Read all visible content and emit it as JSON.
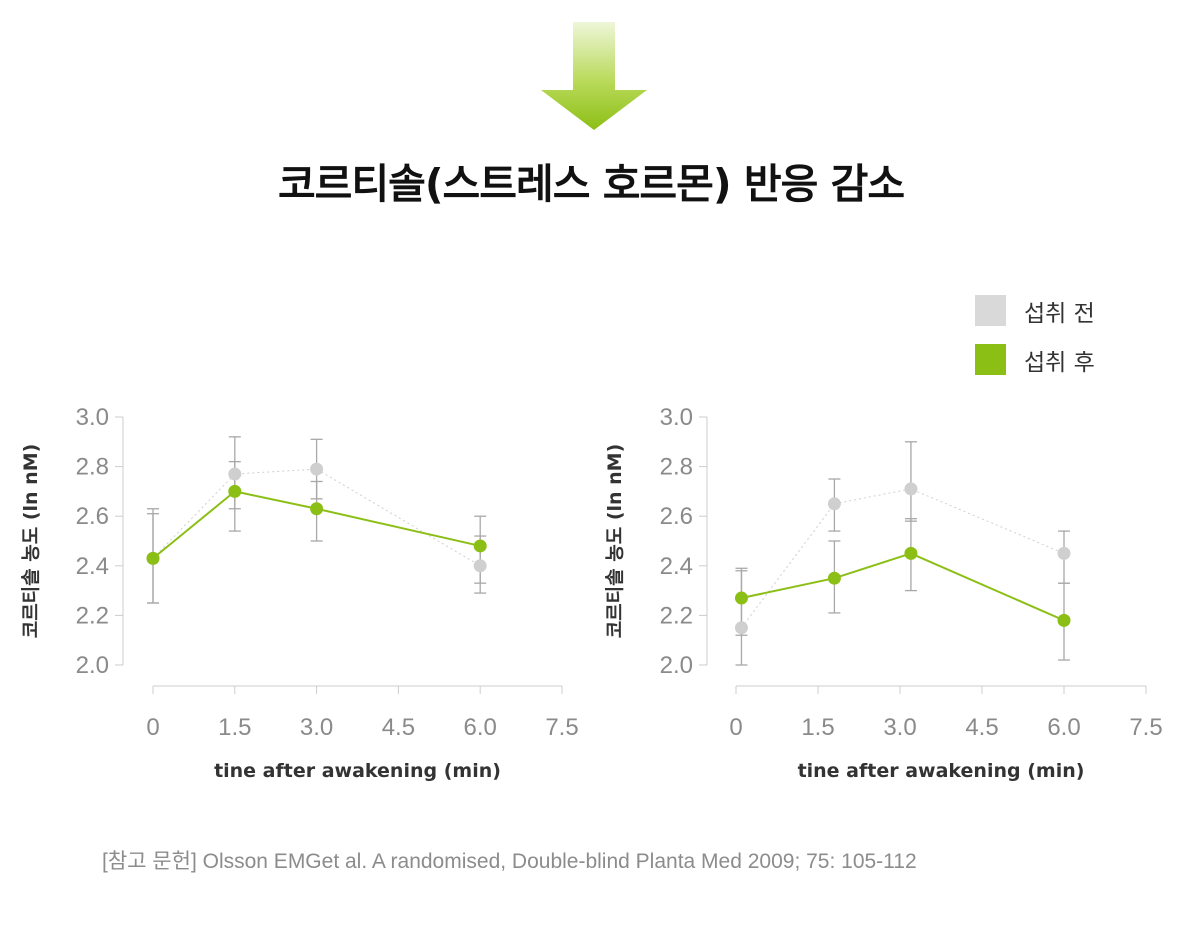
{
  "title": "코르티솔(스트레스 호르몬) 반응 감소",
  "colors": {
    "before": "#cfcfcf",
    "after": "#8cbf15",
    "axis": "#cccccc",
    "error": "#a8a8a8"
  },
  "legend": [
    {
      "label": "섭취 전",
      "color": "#d9d9d9"
    },
    {
      "label": "섭취 후",
      "color": "#8cbf15"
    }
  ],
  "chart_data": [
    {
      "type": "line",
      "xlabel": "tine after awakening (min)",
      "ylabel": "코르티솔 농도 (ln nM)",
      "xlim": [
        0,
        7.5
      ],
      "ylim": [
        2.0,
        3.0
      ],
      "xticks": [
        "0",
        "1.5",
        "3.0",
        "4.5",
        "6.0",
        "7.5"
      ],
      "yticks": [
        "2.0",
        "2.2",
        "2.4",
        "2.6",
        "2.8",
        "3.0"
      ],
      "grid": false,
      "series": [
        {
          "name": "섭취 전",
          "x": [
            0,
            1.5,
            3.0,
            6.0
          ],
          "y": [
            2.43,
            2.77,
            2.79,
            2.4
          ],
          "err_low": [
            2.25,
            2.63,
            2.67,
            2.29
          ],
          "err_high": [
            2.63,
            2.92,
            2.91,
            2.52
          ]
        },
        {
          "name": "섭취 후",
          "x": [
            0,
            1.5,
            3.0,
            6.0
          ],
          "y": [
            2.43,
            2.7,
            2.63,
            2.48
          ],
          "err_low": [
            2.25,
            2.54,
            2.5,
            2.33
          ],
          "err_high": [
            2.61,
            2.82,
            2.74,
            2.6
          ]
        }
      ]
    },
    {
      "type": "line",
      "xlabel": "tine after awakening (min)",
      "ylabel": "코르티솔 농도 (ln nM)",
      "xlim": [
        0,
        7.5
      ],
      "ylim": [
        2.0,
        3.0
      ],
      "xticks": [
        "0",
        "1.5",
        "3.0",
        "4.5",
        "6.0",
        "7.5"
      ],
      "yticks": [
        "2.0",
        "2.2",
        "2.4",
        "2.6",
        "2.8",
        "3.0"
      ],
      "grid": false,
      "series": [
        {
          "name": "섭취 전",
          "x": [
            0.1,
            1.8,
            3.2,
            6.0
          ],
          "y": [
            2.15,
            2.65,
            2.71,
            2.45
          ],
          "err_low": [
            2.0,
            2.54,
            2.58,
            2.33
          ],
          "err_high": [
            2.39,
            2.75,
            2.9,
            2.54
          ]
        },
        {
          "name": "섭취 후",
          "x": [
            0.1,
            1.8,
            3.2,
            6.0
          ],
          "y": [
            2.27,
            2.35,
            2.45,
            2.18
          ],
          "err_low": [
            2.12,
            2.21,
            2.3,
            2.02
          ],
          "err_high": [
            2.38,
            2.5,
            2.59,
            2.33
          ]
        }
      ]
    }
  ],
  "reference": "[참고 문헌] Olsson EMGet al. A randomised, Double-blind Planta Med 2009; 75: 105-112"
}
